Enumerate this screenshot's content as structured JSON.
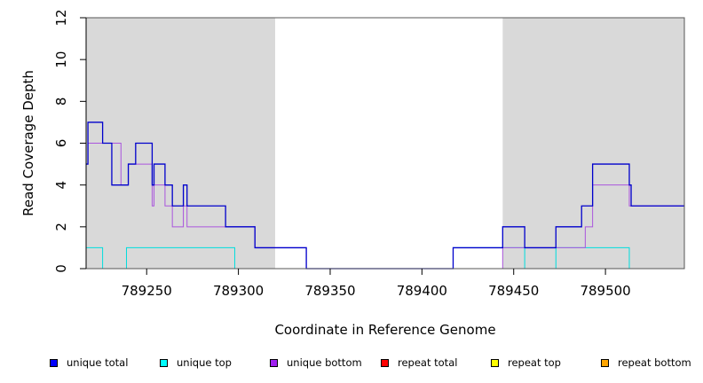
{
  "chart_data": {
    "type": "line",
    "title": "",
    "xlabel": "Coordinate in Reference Genome",
    "ylabel": "Read Coverage Depth",
    "xlim": [
      789217,
      789543
    ],
    "ylim": [
      0,
      12
    ],
    "x_ticks": [
      789250,
      789300,
      789350,
      789400,
      789450,
      789500
    ],
    "y_ticks": [
      0,
      2,
      4,
      6,
      8,
      10,
      12
    ],
    "shaded_regions": [
      {
        "x_start": 789217,
        "x_end": 789320,
        "color": "#d9d9d9"
      },
      {
        "x_start": 789444,
        "x_end": 789543,
        "color": "#d9d9d9"
      }
    ],
    "series": [
      {
        "name": "unique total",
        "color": "#0000cc",
        "steps": [
          [
            789217,
            5
          ],
          [
            789218,
            7
          ],
          [
            789226,
            6
          ],
          [
            789231,
            4
          ],
          [
            789240,
            5
          ],
          [
            789244,
            6
          ],
          [
            789253,
            4
          ],
          [
            789254,
            5
          ],
          [
            789260,
            4
          ],
          [
            789264,
            3
          ],
          [
            789270,
            4
          ],
          [
            789272,
            3
          ],
          [
            789293,
            2
          ],
          [
            789309,
            1
          ],
          [
            789337,
            0
          ],
          [
            789417,
            1
          ],
          [
            789444,
            2
          ],
          [
            789456,
            1
          ],
          [
            789473,
            2
          ],
          [
            789487,
            3
          ],
          [
            789493,
            5
          ],
          [
            789513,
            4
          ],
          [
            789514,
            3
          ],
          [
            789543,
            3
          ]
        ]
      },
      {
        "name": "unique top",
        "color": "#00dddd",
        "steps": [
          [
            789217,
            1
          ],
          [
            789226,
            0
          ],
          [
            789239,
            1
          ],
          [
            789298,
            0
          ],
          [
            789417,
            1
          ],
          [
            789456,
            0
          ],
          [
            789473,
            1
          ],
          [
            789513,
            0
          ],
          [
            789543,
            0
          ]
        ]
      },
      {
        "name": "unique bottom",
        "color": "#aa55dd",
        "steps": [
          [
            789217,
            5
          ],
          [
            789218,
            6
          ],
          [
            789236,
            4
          ],
          [
            789240,
            5
          ],
          [
            789253,
            3
          ],
          [
            789254,
            4
          ],
          [
            789260,
            3
          ],
          [
            789264,
            2
          ],
          [
            789270,
            3
          ],
          [
            789272,
            2
          ],
          [
            789309,
            1
          ],
          [
            789337,
            0
          ],
          [
            789444,
            1
          ],
          [
            789489,
            2
          ],
          [
            789493,
            4
          ],
          [
            789513,
            3
          ],
          [
            789543,
            3
          ]
        ]
      },
      {
        "name": "repeat total",
        "color": "#ff0000",
        "steps": [
          [
            789217,
            0
          ],
          [
            789543,
            0
          ]
        ]
      },
      {
        "name": "repeat top",
        "color": "#ffff00",
        "steps": [
          [
            789217,
            0
          ],
          [
            789543,
            0
          ]
        ]
      },
      {
        "name": "repeat bottom",
        "color": "#ff9900",
        "steps": [
          [
            789217,
            0
          ],
          [
            789543,
            0
          ]
        ]
      }
    ],
    "legend": [
      {
        "label": "unique total",
        "color": "#0000ff"
      },
      {
        "label": "unique top",
        "color": "#00ffff"
      },
      {
        "label": "unique bottom",
        "color": "#a020f0"
      },
      {
        "label": "repeat total",
        "color": "#ff0000"
      },
      {
        "label": "repeat top",
        "color": "#ffff00"
      },
      {
        "label": "repeat bottom",
        "color": "#ffa500"
      }
    ]
  }
}
